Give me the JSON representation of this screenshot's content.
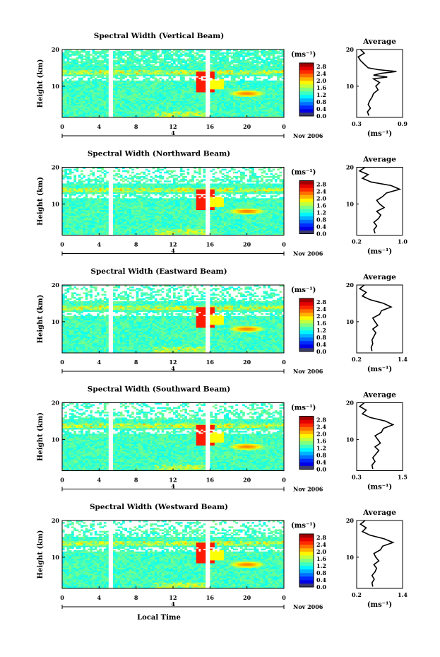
{
  "figure": {
    "date_label": "Nov 2006",
    "day_label": "4",
    "xlabel": "Local Time",
    "avg_title": "Average",
    "colorbar_unit": "(ms⁻¹)",
    "avg_xlabel": "(ms⁻¹)"
  },
  "chart_data": [
    {
      "type": "heatmap",
      "title": "Spectral Width (Vertical Beam)",
      "xlabel": "Local Time",
      "ylabel": "Height (km)",
      "x_ticks": [
        "0",
        "4",
        "8",
        "12",
        "16",
        "20",
        "0"
      ],
      "y_ticks": [
        "20",
        "10"
      ],
      "x_range_hours": [
        0,
        24
      ],
      "y_range_km": [
        1.5,
        20
      ],
      "data_gaps_hours": [
        [
          5.1,
          5.4
        ],
        [
          14.9,
          15.1
        ],
        [
          15.6,
          15.9
        ]
      ],
      "colorbar": {
        "label": "(ms⁻¹)",
        "ticks": [
          "0.0",
          "0.4",
          "0.8",
          "1.2",
          "1.6",
          "2.0",
          "2.4",
          "2.8"
        ],
        "range": [
          0,
          3.0
        ]
      },
      "average_profile": {
        "title": "Average",
        "xlabel": "(ms⁻¹)",
        "x_ticks": [
          "0.3",
          "0.9"
        ],
        "xlim": [
          0.3,
          0.9
        ],
        "y_ticks": [
          "20",
          "10"
        ],
        "heights_km": [
          2,
          3,
          4,
          5,
          6,
          7,
          8,
          9,
          10,
          11,
          12,
          12.5,
          13,
          13.5,
          14,
          14.5,
          15,
          16,
          17,
          18,
          19,
          20
        ],
        "values": [
          0.46,
          0.44,
          0.48,
          0.45,
          0.47,
          0.5,
          0.52,
          0.58,
          0.55,
          0.6,
          0.52,
          0.7,
          0.52,
          0.62,
          0.82,
          0.58,
          0.45,
          0.4,
          0.35,
          0.32,
          0.4,
          0.35
        ]
      }
    },
    {
      "type": "heatmap",
      "title": "Spectral Width (Northward Beam)",
      "xlabel": "Local Time",
      "ylabel": "Height (km)",
      "x_ticks": [
        "0",
        "4",
        "8",
        "12",
        "16",
        "20",
        "0"
      ],
      "y_ticks": [
        "20",
        "10"
      ],
      "x_range_hours": [
        0,
        24
      ],
      "y_range_km": [
        1.5,
        20
      ],
      "data_gaps_hours": [
        [
          5.1,
          5.4
        ],
        [
          14.9,
          15.1
        ],
        [
          15.6,
          15.9
        ]
      ],
      "colorbar": {
        "label": "(ms⁻¹)",
        "ticks": [
          "0.0",
          "0.4",
          "0.8",
          "1.2",
          "1.6",
          "2.0",
          "2.4",
          "2.8"
        ],
        "range": [
          0,
          3.0
        ]
      },
      "average_profile": {
        "title": "Average",
        "xlabel": "(ms⁻¹)",
        "x_ticks": [
          "0.2",
          "1.0"
        ],
        "xlim": [
          0.2,
          1.0
        ],
        "y_ticks": [
          "20",
          "10"
        ],
        "heights_km": [
          2,
          3,
          4,
          5,
          6,
          7,
          8,
          9,
          10,
          11,
          12,
          13,
          14,
          15,
          16,
          17,
          18,
          19,
          20
        ],
        "values": [
          0.52,
          0.5,
          0.55,
          0.5,
          0.58,
          0.62,
          0.55,
          0.68,
          0.6,
          0.55,
          0.65,
          0.72,
          0.95,
          0.8,
          0.45,
          0.3,
          0.4,
          0.25,
          0.35
        ]
      }
    },
    {
      "type": "heatmap",
      "title": "Spectral Width (Eastward Beam)",
      "xlabel": "Local Time",
      "ylabel": "Height (km)",
      "x_ticks": [
        "0",
        "4",
        "8",
        "12",
        "16",
        "20",
        "0"
      ],
      "y_ticks": [
        "20",
        "10"
      ],
      "x_range_hours": [
        0,
        24
      ],
      "y_range_km": [
        1.5,
        20
      ],
      "data_gaps_hours": [
        [
          5.1,
          5.4
        ],
        [
          14.9,
          15.1
        ],
        [
          15.6,
          15.9
        ]
      ],
      "colorbar": {
        "label": "(ms⁻¹)",
        "ticks": [
          "0.0",
          "0.4",
          "0.8",
          "1.2",
          "1.6",
          "2.0",
          "2.4",
          "2.8"
        ],
        "range": [
          0,
          3.0
        ]
      },
      "average_profile": {
        "title": "Average",
        "xlabel": "(ms⁻¹)",
        "x_ticks": [
          "0.2",
          "1.4"
        ],
        "xlim": [
          0.2,
          1.4
        ],
        "y_ticks": [
          "20",
          "10"
        ],
        "heights_km": [
          2,
          3,
          4,
          5,
          6,
          7,
          8,
          9,
          10,
          11,
          12,
          13,
          14,
          15,
          16,
          17,
          18,
          19,
          20
        ],
        "values": [
          0.6,
          0.58,
          0.62,
          0.6,
          0.65,
          0.7,
          0.62,
          0.75,
          0.68,
          0.62,
          0.8,
          0.85,
          1.1,
          0.9,
          0.55,
          0.35,
          0.45,
          0.28,
          0.4
        ]
      }
    },
    {
      "type": "heatmap",
      "title": "Spectral Width (Southward Beam)",
      "xlabel": "Local Time",
      "ylabel": "Height (km)",
      "x_ticks": [
        "0",
        "4",
        "8",
        "12",
        "16",
        "20",
        "0"
      ],
      "y_ticks": [
        "20",
        "10"
      ],
      "x_range_hours": [
        0,
        24
      ],
      "y_range_km": [
        1.5,
        20
      ],
      "data_gaps_hours": [
        [
          5.1,
          5.4
        ],
        [
          14.9,
          15.1
        ],
        [
          15.6,
          15.9
        ]
      ],
      "colorbar": {
        "label": "(ms⁻¹)",
        "ticks": [
          "0.0",
          "0.4",
          "0.8",
          "1.2",
          "1.6",
          "2.0",
          "2.4",
          "2.8"
        ],
        "range": [
          0,
          3.0
        ]
      },
      "average_profile": {
        "title": "Average",
        "xlabel": "(ms⁻¹)",
        "x_ticks": [
          "0.3",
          "1.5"
        ],
        "xlim": [
          0.3,
          1.5
        ],
        "y_ticks": [
          "20",
          "10"
        ],
        "heights_km": [
          2,
          3,
          4,
          5,
          6,
          7,
          8,
          9,
          10,
          11,
          12,
          13,
          14,
          15,
          16,
          17,
          18,
          19,
          20
        ],
        "values": [
          0.72,
          0.7,
          0.78,
          0.72,
          0.8,
          0.88,
          0.78,
          0.92,
          0.85,
          0.78,
          0.95,
          1.0,
          1.25,
          1.05,
          0.65,
          0.45,
          0.55,
          0.38,
          0.5
        ]
      }
    },
    {
      "type": "heatmap",
      "title": "Spectral Width (Westward Beam)",
      "xlabel": "Local Time",
      "ylabel": "Height (km)",
      "x_ticks": [
        "0",
        "4",
        "8",
        "12",
        "16",
        "20",
        "0"
      ],
      "y_ticks": [
        "20",
        "10"
      ],
      "x_range_hours": [
        0,
        24
      ],
      "y_range_km": [
        1.5,
        20
      ],
      "data_gaps_hours": [
        [
          5.1,
          5.4
        ],
        [
          14.9,
          15.1
        ],
        [
          15.6,
          15.9
        ]
      ],
      "colorbar": {
        "label": "(ms⁻¹)",
        "ticks": [
          "0.0",
          "0.4",
          "0.8",
          "1.2",
          "1.6",
          "2.0",
          "2.4",
          "2.8"
        ],
        "range": [
          0,
          3.0
        ]
      },
      "average_profile": {
        "title": "Average",
        "xlabel": "(ms⁻¹)",
        "x_ticks": [
          "0.2",
          "1.4"
        ],
        "xlim": [
          0.2,
          1.4
        ],
        "y_ticks": [
          "20",
          "10"
        ],
        "heights_km": [
          2,
          3,
          4,
          5,
          6,
          7,
          8,
          9,
          10,
          11,
          12,
          13,
          14,
          15,
          16,
          17,
          18,
          19,
          20
        ],
        "values": [
          0.62,
          0.6,
          0.66,
          0.6,
          0.68,
          0.72,
          0.65,
          0.78,
          0.7,
          0.65,
          0.82,
          0.88,
          1.15,
          0.92,
          0.55,
          0.35,
          0.45,
          0.3,
          0.42
        ]
      }
    }
  ]
}
